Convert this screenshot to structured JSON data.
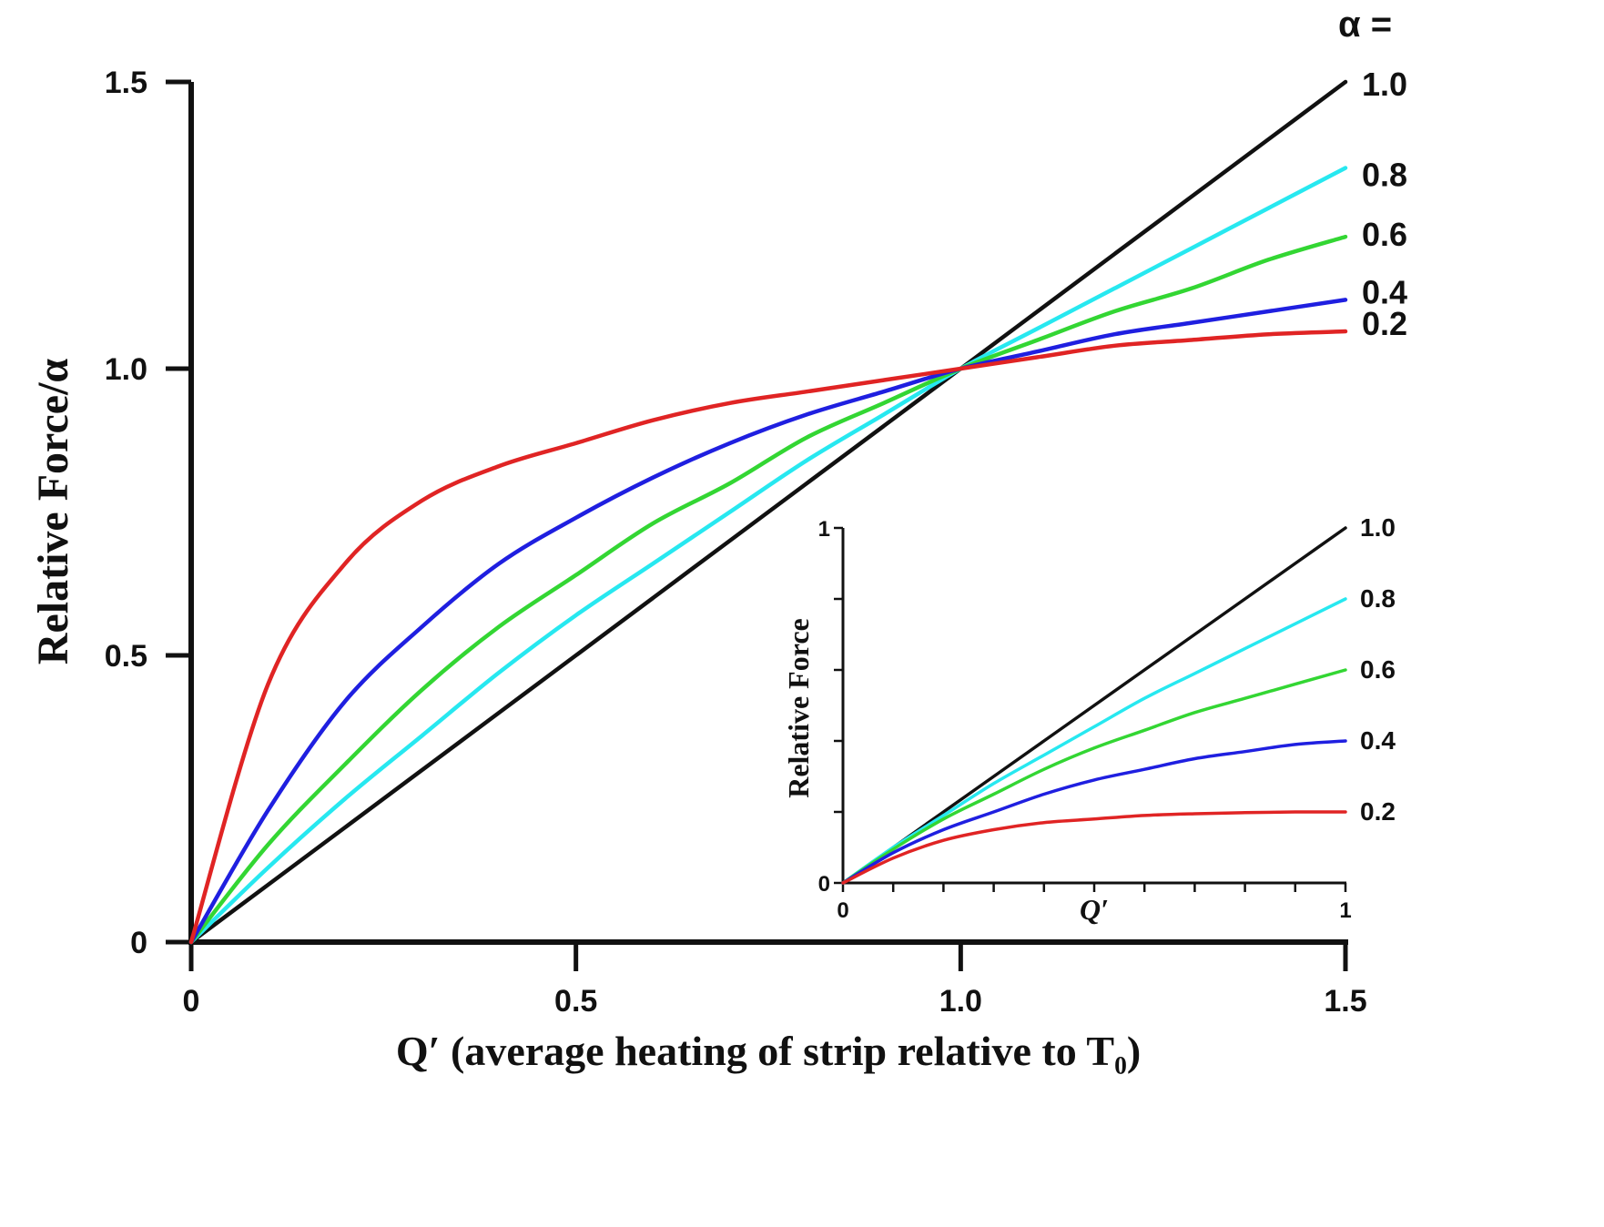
{
  "chart_data": [
    {
      "type": "line",
      "title": "",
      "xlabel": "Q′ (average heating of strip relative to T₀)",
      "ylabel": "Relative Force/α",
      "xlim": [
        0,
        1.5
      ],
      "ylim": [
        0,
        1.5
      ],
      "xticks": [
        0,
        0.5,
        1.0,
        1.5
      ],
      "xtick_labels": [
        "0",
        "0.5",
        "1.0",
        "1.5"
      ],
      "yticks": [
        0,
        0.5,
        1.0,
        1.5
      ],
      "ytick_labels": [
        "0",
        "0.5",
        "1.0",
        "1.5"
      ],
      "grid": false,
      "legend_title": "α =",
      "series": [
        {
          "name": "1.0",
          "color": "#111111",
          "x": [
            0,
            0.1,
            0.2,
            0.3,
            0.4,
            0.5,
            0.6,
            0.7,
            0.8,
            0.9,
            1.0,
            1.1,
            1.2,
            1.3,
            1.4,
            1.5
          ],
          "y": [
            0,
            0.1,
            0.2,
            0.3,
            0.4,
            0.5,
            0.6,
            0.7,
            0.8,
            0.9,
            1.0,
            1.1,
            1.2,
            1.3,
            1.4,
            1.5
          ]
        },
        {
          "name": "0.8",
          "color": "#27e8f0",
          "x": [
            0,
            0.1,
            0.2,
            0.3,
            0.4,
            0.5,
            0.6,
            0.7,
            0.8,
            0.9,
            1.0,
            1.1,
            1.2,
            1.3,
            1.4,
            1.5
          ],
          "y": [
            0,
            0.13,
            0.25,
            0.36,
            0.47,
            0.57,
            0.66,
            0.75,
            0.84,
            0.92,
            1.0,
            1.07,
            1.14,
            1.21,
            1.28,
            1.35
          ]
        },
        {
          "name": "0.6",
          "color": "#33d633",
          "x": [
            0,
            0.1,
            0.2,
            0.3,
            0.4,
            0.5,
            0.6,
            0.7,
            0.8,
            0.9,
            1.0,
            1.1,
            1.2,
            1.3,
            1.4,
            1.5
          ],
          "y": [
            0,
            0.17,
            0.31,
            0.44,
            0.55,
            0.64,
            0.73,
            0.8,
            0.88,
            0.94,
            1.0,
            1.05,
            1.1,
            1.14,
            1.19,
            1.23
          ]
        },
        {
          "name": "0.4",
          "color": "#1f1fe0",
          "x": [
            0,
            0.1,
            0.2,
            0.3,
            0.4,
            0.5,
            0.6,
            0.7,
            0.8,
            0.9,
            1.0,
            1.1,
            1.2,
            1.3,
            1.4,
            1.5
          ],
          "y": [
            0,
            0.23,
            0.42,
            0.55,
            0.66,
            0.74,
            0.81,
            0.87,
            0.92,
            0.96,
            1.0,
            1.03,
            1.06,
            1.08,
            1.1,
            1.12
          ]
        },
        {
          "name": "0.2",
          "color": "#e02424",
          "x": [
            0,
            0.1,
            0.2,
            0.3,
            0.4,
            0.5,
            0.6,
            0.7,
            0.8,
            0.9,
            1.0,
            1.1,
            1.2,
            1.3,
            1.4,
            1.5
          ],
          "y": [
            0,
            0.45,
            0.66,
            0.77,
            0.83,
            0.87,
            0.91,
            0.94,
            0.96,
            0.98,
            1.0,
            1.02,
            1.04,
            1.05,
            1.06,
            1.065
          ]
        }
      ]
    },
    {
      "type": "line",
      "title": "",
      "xlabel": "Q′",
      "ylabel": "Relative Force",
      "xlim": [
        0,
        1
      ],
      "ylim": [
        0,
        1
      ],
      "xticks": [
        0,
        0.1,
        0.2,
        0.3,
        0.4,
        0.5,
        0.6,
        0.7,
        0.8,
        0.9,
        1
      ],
      "xtick_labels": [
        "0",
        "",
        "",
        "",
        "",
        "",
        "",
        "",
        "",
        "",
        "1"
      ],
      "yticks": [
        0,
        0.2,
        0.4,
        0.6,
        0.8,
        1
      ],
      "ytick_labels": [
        "0",
        "",
        "",
        "",
        "",
        "1"
      ],
      "grid": false,
      "series": [
        {
          "name": "1.0",
          "color": "#111111",
          "x": [
            0,
            0.1,
            0.2,
            0.3,
            0.4,
            0.5,
            0.6,
            0.7,
            0.8,
            0.9,
            1
          ],
          "y": [
            0,
            0.1,
            0.2,
            0.3,
            0.4,
            0.5,
            0.6,
            0.7,
            0.8,
            0.9,
            1.0
          ]
        },
        {
          "name": "0.8",
          "color": "#27e8f0",
          "x": [
            0,
            0.1,
            0.2,
            0.3,
            0.4,
            0.5,
            0.6,
            0.7,
            0.8,
            0.9,
            1
          ],
          "y": [
            0,
            0.1,
            0.19,
            0.28,
            0.36,
            0.44,
            0.52,
            0.59,
            0.66,
            0.73,
            0.8
          ]
        },
        {
          "name": "0.6",
          "color": "#33d633",
          "x": [
            0,
            0.1,
            0.2,
            0.3,
            0.4,
            0.5,
            0.6,
            0.7,
            0.8,
            0.9,
            1
          ],
          "y": [
            0,
            0.095,
            0.18,
            0.25,
            0.32,
            0.38,
            0.43,
            0.48,
            0.52,
            0.56,
            0.6
          ]
        },
        {
          "name": "0.4",
          "color": "#1f1fe0",
          "x": [
            0,
            0.1,
            0.2,
            0.3,
            0.4,
            0.5,
            0.6,
            0.7,
            0.8,
            0.9,
            1
          ],
          "y": [
            0,
            0.085,
            0.15,
            0.2,
            0.25,
            0.29,
            0.32,
            0.35,
            0.37,
            0.39,
            0.4
          ]
        },
        {
          "name": "0.2",
          "color": "#e02424",
          "x": [
            0,
            0.1,
            0.2,
            0.3,
            0.4,
            0.5,
            0.6,
            0.7,
            0.8,
            0.9,
            1
          ],
          "y": [
            0,
            0.07,
            0.12,
            0.15,
            0.17,
            0.18,
            0.19,
            0.195,
            0.198,
            0.2,
            0.2
          ]
        }
      ]
    }
  ]
}
